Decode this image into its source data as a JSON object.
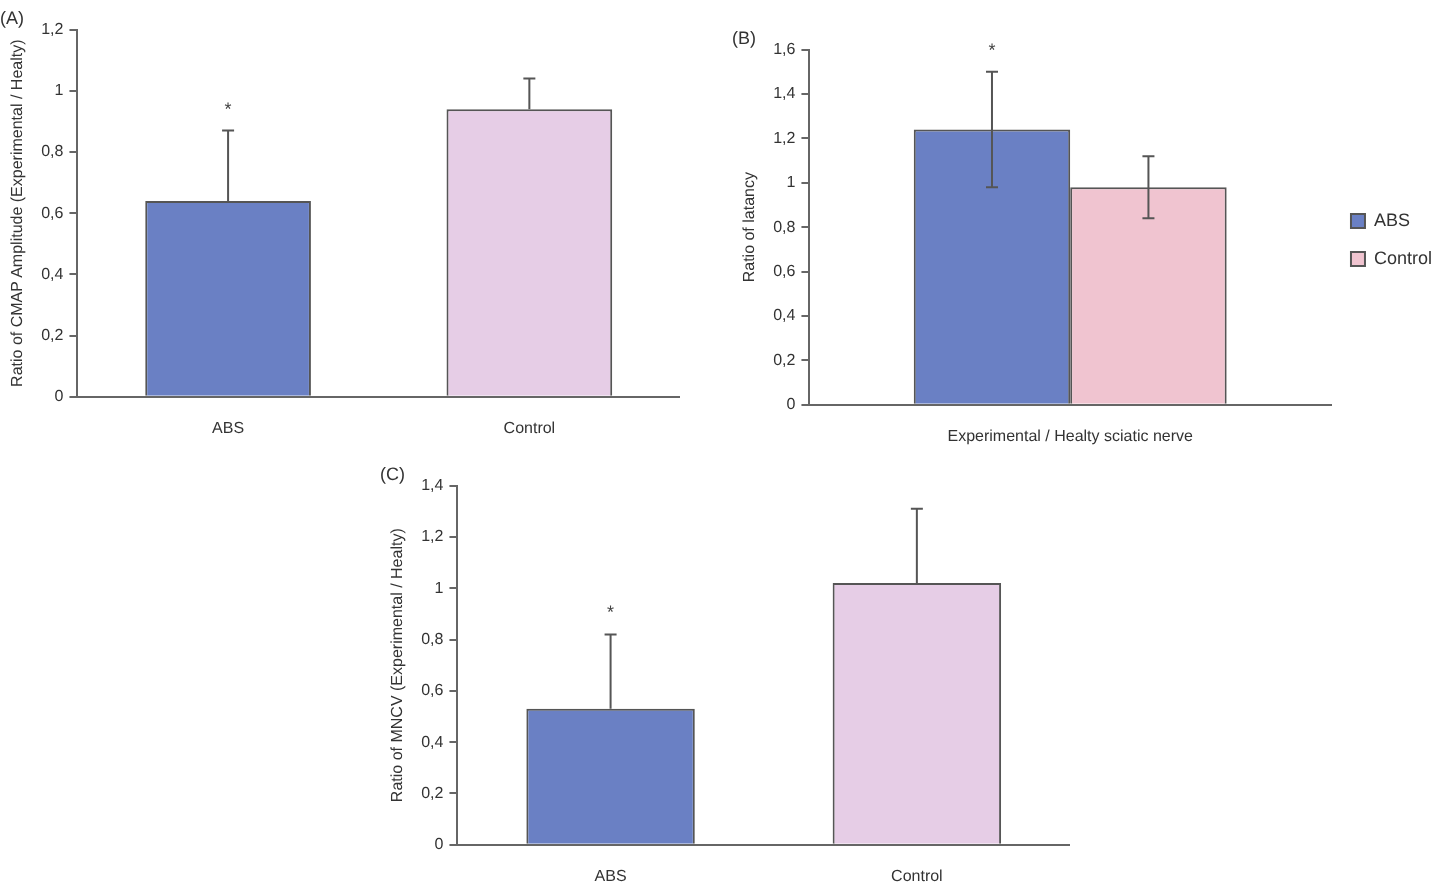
{
  "chart_data": [
    {
      "type": "bar",
      "title": "(A)",
      "ylabel": "Ratio of CMAP Amplitude (Experimental / Healty)",
      "categories": [
        "ABS",
        "Control"
      ],
      "values": [
        0.64,
        0.94
      ],
      "colors": [
        "#6a80c4",
        "#e6cde6"
      ],
      "errors": [
        [
          0.64,
          0.87
        ],
        [
          0.94,
          1.04
        ]
      ],
      "ylim": [
        0,
        1.2
      ],
      "yticks": [
        {
          "value": 0,
          "label": "0"
        },
        {
          "value": 0.2,
          "label": "0,2"
        },
        {
          "value": 0.4,
          "label": "0,4"
        },
        {
          "value": 0.6,
          "label": "0,6"
        },
        {
          "value": 0.8,
          "label": "0,8"
        },
        {
          "value": 1,
          "label": "1"
        },
        {
          "value": 1.2,
          "label": "1,2"
        }
      ],
      "annotations": [
        "*"
      ]
    },
    {
      "type": "bar",
      "title": "(B)",
      "ylabel": "Ratio of latancy",
      "categories": [
        "Experimental / Healty sciatic nerve"
      ],
      "series": [
        {
          "name": "ABS",
          "color": "#6a80c4",
          "values": [
            1.24
          ],
          "errors": [
            0.26
          ]
        },
        {
          "name": "Control",
          "color": "#f0c4d0",
          "values": [
            0.98
          ],
          "errors": [
            0.14
          ]
        }
      ],
      "ylim": [
        0,
        1.6
      ],
      "yticks": [
        {
          "value": 0,
          "label": "0"
        },
        {
          "value": 0.2,
          "label": "0,2"
        },
        {
          "value": 0.4,
          "label": "0,4"
        },
        {
          "value": 0.6,
          "label": "0,6"
        },
        {
          "value": 0.8,
          "label": "0,8"
        },
        {
          "value": 1,
          "label": "1"
        },
        {
          "value": 1.2,
          "label": "1,2"
        },
        {
          "value": 1.4,
          "label": "1,4"
        },
        {
          "value": 1.6,
          "label": "1,6"
        }
      ],
      "legend": "right",
      "annotations": [
        "*"
      ]
    },
    {
      "type": "bar",
      "title": "(C)",
      "ylabel": "Ratio of MNCV (Experimental / Healty)",
      "categories": [
        "ABS",
        "Control"
      ],
      "values": [
        0.53,
        1.02
      ],
      "colors": [
        "#6a80c4",
        "#e6cde6"
      ],
      "errors": [
        [
          0.53,
          0.82
        ],
        [
          1.02,
          1.31
        ]
      ],
      "ylim": [
        0,
        1.4
      ],
      "yticks": [
        {
          "value": 0,
          "label": "0"
        },
        {
          "value": 0.2,
          "label": "0,2"
        },
        {
          "value": 0.4,
          "label": "0,4"
        },
        {
          "value": 0.6,
          "label": "0,6"
        },
        {
          "value": 0.8,
          "label": "0,8"
        },
        {
          "value": 1,
          "label": "1"
        },
        {
          "value": 1.2,
          "label": "1,2"
        },
        {
          "value": 1.4,
          "label": "1,4"
        }
      ],
      "annotations": [
        "*"
      ]
    }
  ]
}
